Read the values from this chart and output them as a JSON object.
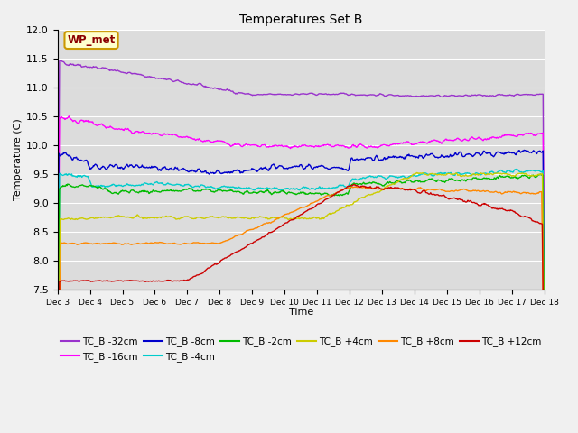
{
  "title": "Temperatures Set B",
  "xlabel": "Time",
  "ylabel": "Temperature (C)",
  "ylim": [
    7.5,
    12.0
  ],
  "xlim_days": [
    3,
    18
  ],
  "series_order": [
    "TC_B -32cm",
    "TC_B -16cm",
    "TC_B -8cm",
    "TC_B -4cm",
    "TC_B -2cm",
    "TC_B +4cm",
    "TC_B +8cm",
    "TC_B +12cm"
  ],
  "series": {
    "TC_B -32cm": {
      "color": "#9933CC",
      "lw": 1.0
    },
    "TC_B -16cm": {
      "color": "#FF00FF",
      "lw": 1.0
    },
    "TC_B -8cm": {
      "color": "#0000CC",
      "lw": 1.0
    },
    "TC_B -4cm": {
      "color": "#00CCCC",
      "lw": 1.0
    },
    "TC_B -2cm": {
      "color": "#00BB00",
      "lw": 1.0
    },
    "TC_B +4cm": {
      "color": "#CCCC00",
      "lw": 1.0
    },
    "TC_B +8cm": {
      "color": "#FF8800",
      "lw": 1.0
    },
    "TC_B +12cm": {
      "color": "#CC0000",
      "lw": 1.0
    }
  },
  "xtick_labels": [
    "Dec 3",
    "Dec 4",
    "Dec 5",
    "Dec 6",
    "Dec 7",
    "Dec 8",
    "Dec 9",
    "Dec 10",
    "Dec 11",
    "Dec 12",
    "Dec 13",
    "Dec 14",
    "Dec 15",
    "Dec 16",
    "Dec 17",
    "Dec 18"
  ],
  "annotation_text": "WP_met",
  "bg_color": "#DCDCDC",
  "grid_color": "#FFFFFF",
  "yticks": [
    7.5,
    8.0,
    8.5,
    9.0,
    9.5,
    10.0,
    10.5,
    11.0,
    11.5,
    12.0
  ],
  "fig_width": 6.4,
  "fig_height": 4.8,
  "dpi": 100
}
